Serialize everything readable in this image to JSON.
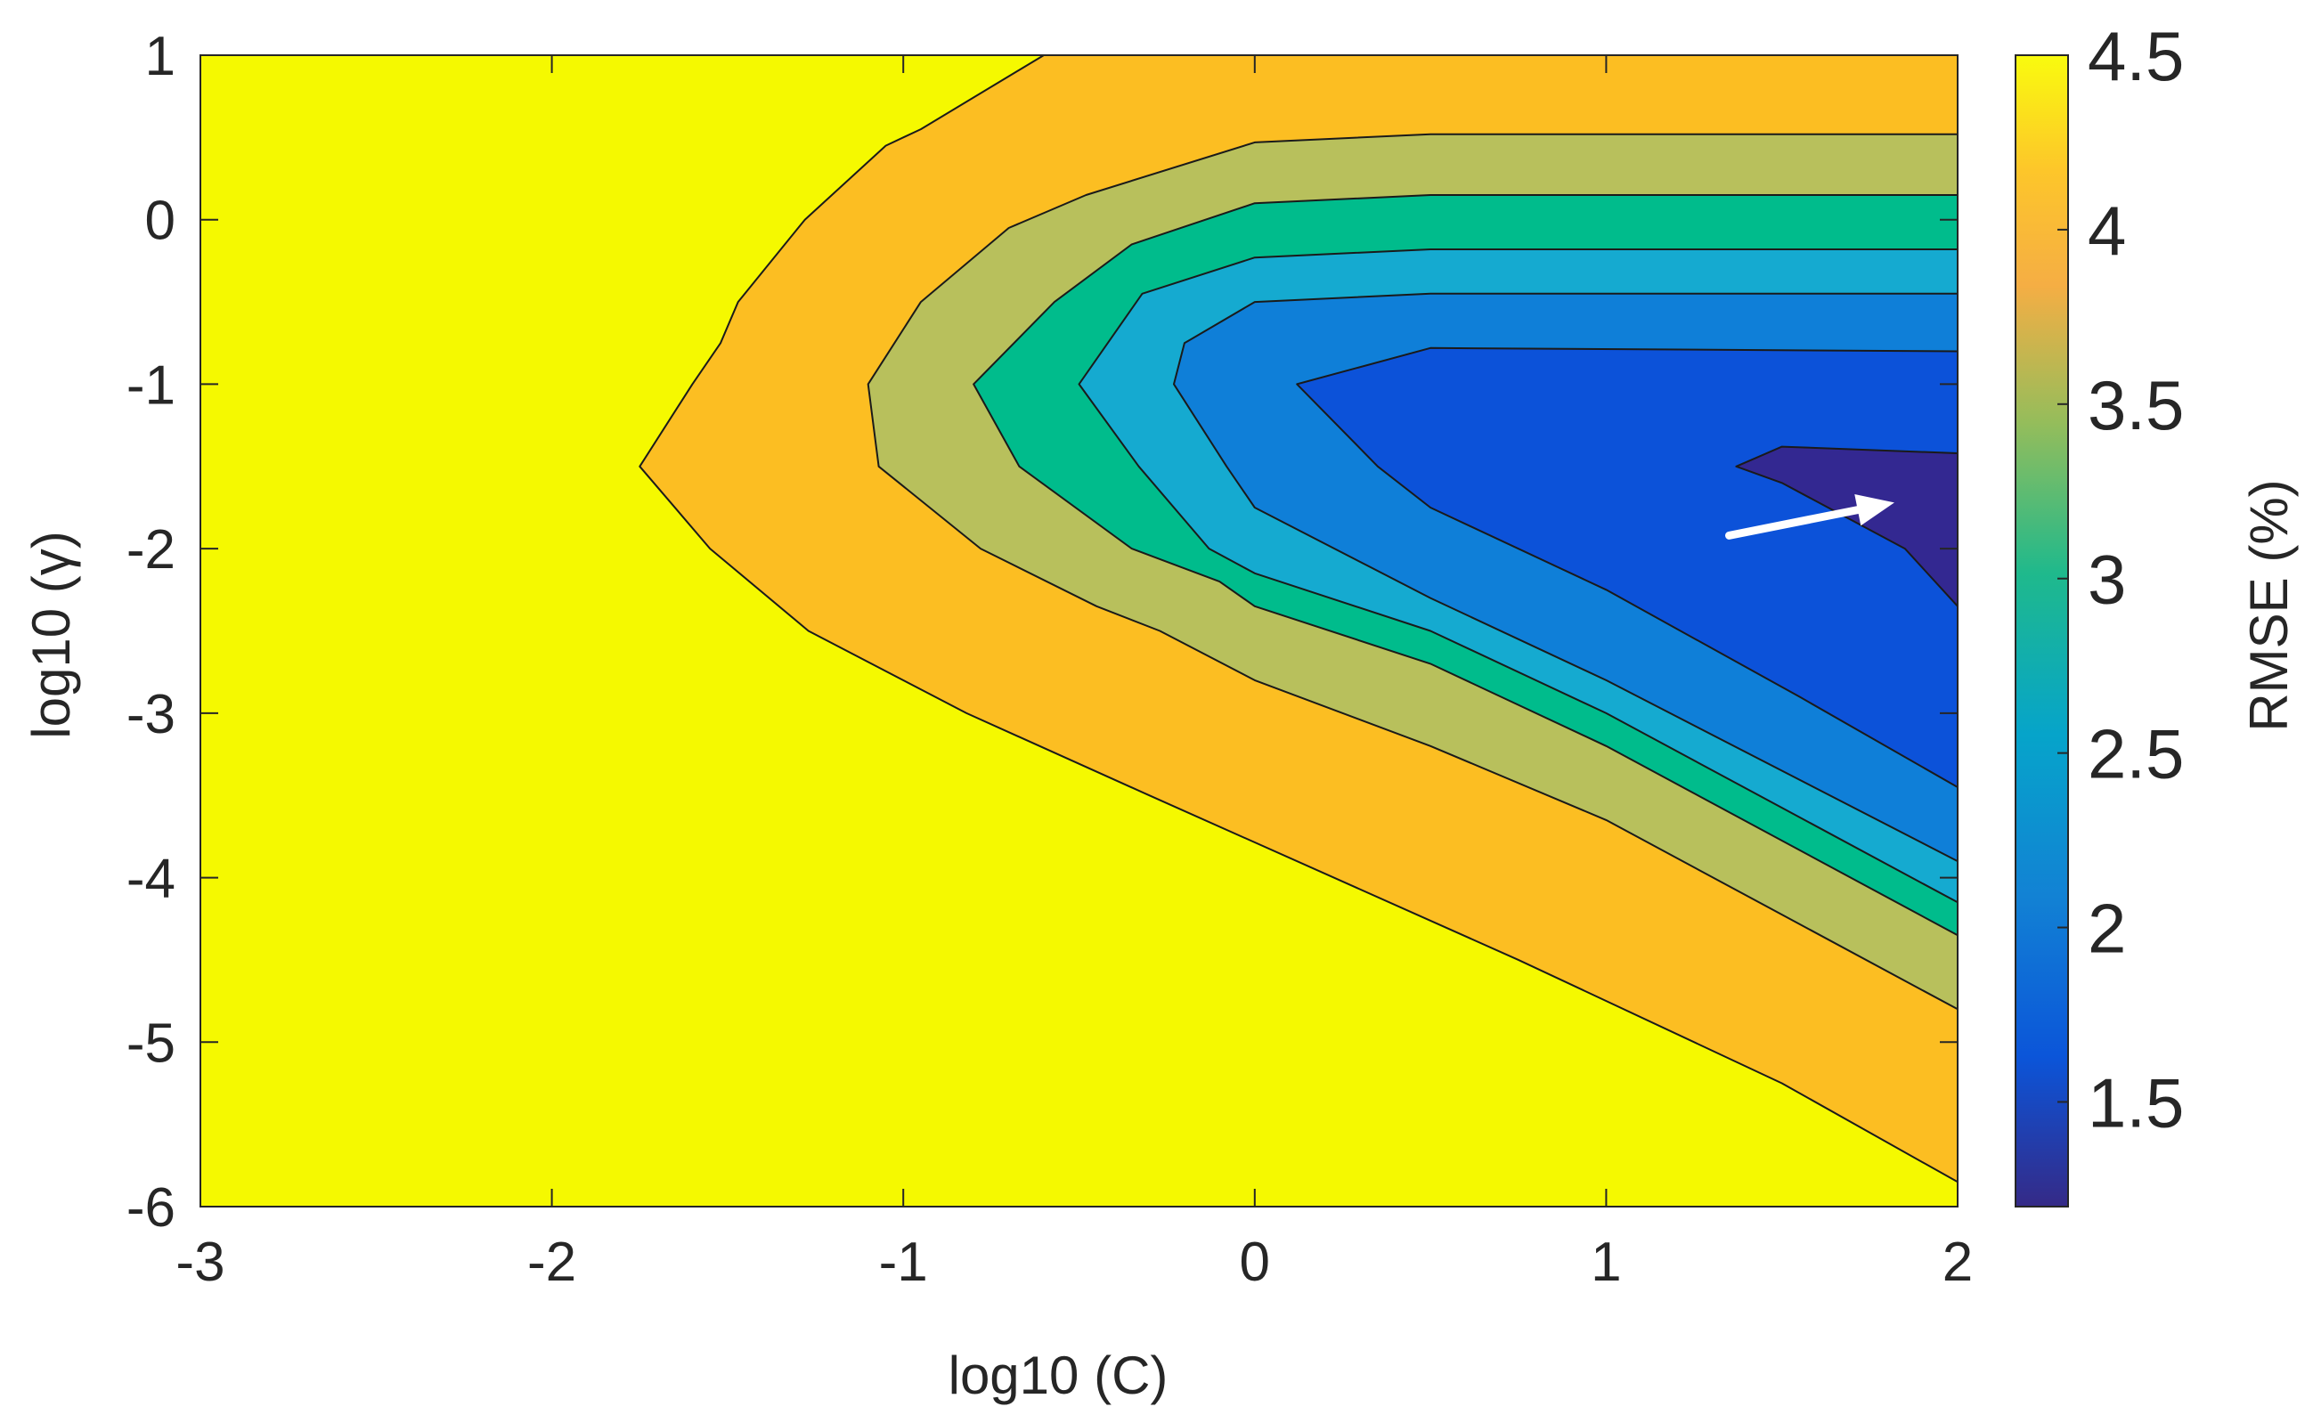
{
  "chart_data": {
    "type": "contour",
    "xlabel": "log10 (C)",
    "ylabel": "log10 (γ)",
    "xlim": [
      -3,
      2
    ],
    "ylim": [
      -6,
      1
    ],
    "xticks": [
      -3,
      -2,
      -1,
      0,
      1,
      2
    ],
    "yticks": [
      1,
      0,
      -1,
      -2,
      -3,
      -4,
      -5,
      -6
    ],
    "colorbar": {
      "label": "RMSE (%)",
      "range": [
        1.2,
        4.5
      ],
      "ticks": [
        1.5,
        2,
        2.5,
        3,
        3.5,
        4,
        4.5
      ],
      "tick_labels": [
        "1.5",
        "2",
        "2.5",
        "3",
        "3.5",
        "4",
        "4.5"
      ]
    },
    "levels": [
      {
        "value": 4.5,
        "color": "#f5f900"
      },
      {
        "value": 4.0,
        "color": "#fcbe22"
      },
      {
        "value": 3.5,
        "color": "#b8c05c"
      },
      {
        "value": 3.0,
        "color": "#00bc8c"
      },
      {
        "value": 2.5,
        "color": "#15aad0"
      },
      {
        "value": 2.0,
        "color": "#0f7fd8"
      },
      {
        "value": 1.6,
        "color": "#0c52d9"
      },
      {
        "value": 1.3,
        "color": "#332891"
      }
    ],
    "contours": [
      {
        "level": 4.0,
        "points": [
          [
            -0.6,
            1.0
          ],
          [
            -0.95,
            0.55
          ],
          [
            -1.05,
            0.45
          ],
          [
            -1.28,
            0.0
          ],
          [
            -1.47,
            -0.5
          ],
          [
            -1.52,
            -0.75
          ],
          [
            -1.6,
            -1.0
          ],
          [
            -1.75,
            -1.5
          ],
          [
            -1.55,
            -2.0
          ],
          [
            -1.27,
            -2.5
          ],
          [
            -0.82,
            -3.0
          ],
          [
            -0.3,
            -3.5
          ],
          [
            0.75,
            -4.5
          ],
          [
            1.5,
            -5.25
          ],
          [
            2.0,
            -5.85
          ],
          [
            2.0,
            1.0
          ]
        ]
      },
      {
        "level": 3.5,
        "points": [
          [
            2.0,
            0.52
          ],
          [
            0.5,
            0.52
          ],
          [
            0.0,
            0.47
          ],
          [
            -0.48,
            0.15
          ],
          [
            -0.7,
            -0.05
          ],
          [
            -0.95,
            -0.5
          ],
          [
            -1.1,
            -1.0
          ],
          [
            -1.07,
            -1.5
          ],
          [
            -0.78,
            -2.0
          ],
          [
            -0.45,
            -2.35
          ],
          [
            -0.27,
            -2.5
          ],
          [
            0.0,
            -2.8
          ],
          [
            0.5,
            -3.2
          ],
          [
            1.0,
            -3.65
          ],
          [
            2.0,
            -4.8
          ]
        ]
      },
      {
        "level": 3.0,
        "points": [
          [
            2.0,
            0.15
          ],
          [
            0.5,
            0.15
          ],
          [
            0.0,
            0.1
          ],
          [
            -0.35,
            -0.15
          ],
          [
            -0.57,
            -0.5
          ],
          [
            -0.8,
            -1.0
          ],
          [
            -0.67,
            -1.5
          ],
          [
            -0.35,
            -2.0
          ],
          [
            -0.1,
            -2.2
          ],
          [
            0.0,
            -2.35
          ],
          [
            0.5,
            -2.7
          ],
          [
            1.0,
            -3.2
          ],
          [
            2.0,
            -4.35
          ]
        ]
      },
      {
        "level": 2.5,
        "points": [
          [
            2.0,
            -0.18
          ],
          [
            0.5,
            -0.18
          ],
          [
            0.0,
            -0.23
          ],
          [
            -0.32,
            -0.45
          ],
          [
            -0.5,
            -1.0
          ],
          [
            -0.33,
            -1.5
          ],
          [
            -0.13,
            -2.0
          ],
          [
            0.0,
            -2.15
          ],
          [
            0.5,
            -2.5
          ],
          [
            1.0,
            -3.0
          ],
          [
            2.0,
            -4.15
          ]
        ]
      },
      {
        "level": 2.0,
        "points": [
          [
            2.0,
            -0.45
          ],
          [
            0.5,
            -0.45
          ],
          [
            0.0,
            -0.5
          ],
          [
            -0.2,
            -0.75
          ],
          [
            -0.23,
            -1.0
          ],
          [
            -0.08,
            -1.5
          ],
          [
            0.0,
            -1.75
          ],
          [
            0.5,
            -2.3
          ],
          [
            1.0,
            -2.8
          ],
          [
            2.0,
            -3.9
          ]
        ]
      },
      {
        "level": 1.6,
        "points": [
          [
            2.0,
            -0.8
          ],
          [
            0.5,
            -0.78
          ],
          [
            0.12,
            -1.0
          ],
          [
            0.35,
            -1.5
          ],
          [
            0.5,
            -1.75
          ],
          [
            1.0,
            -2.25
          ],
          [
            1.55,
            -2.9
          ],
          [
            2.0,
            -3.45
          ]
        ]
      },
      {
        "level": 1.3,
        "points": [
          [
            2.0,
            -1.42
          ],
          [
            1.5,
            -1.38
          ],
          [
            1.37,
            -1.5
          ],
          [
            1.5,
            -1.6
          ],
          [
            1.85,
            -2.0
          ],
          [
            2.0,
            -2.35
          ]
        ]
      }
    ],
    "annotation": {
      "type": "arrow",
      "color": "#ffffff",
      "from": [
        1.35,
        -1.92
      ],
      "to": [
        1.82,
        -1.72
      ]
    }
  }
}
